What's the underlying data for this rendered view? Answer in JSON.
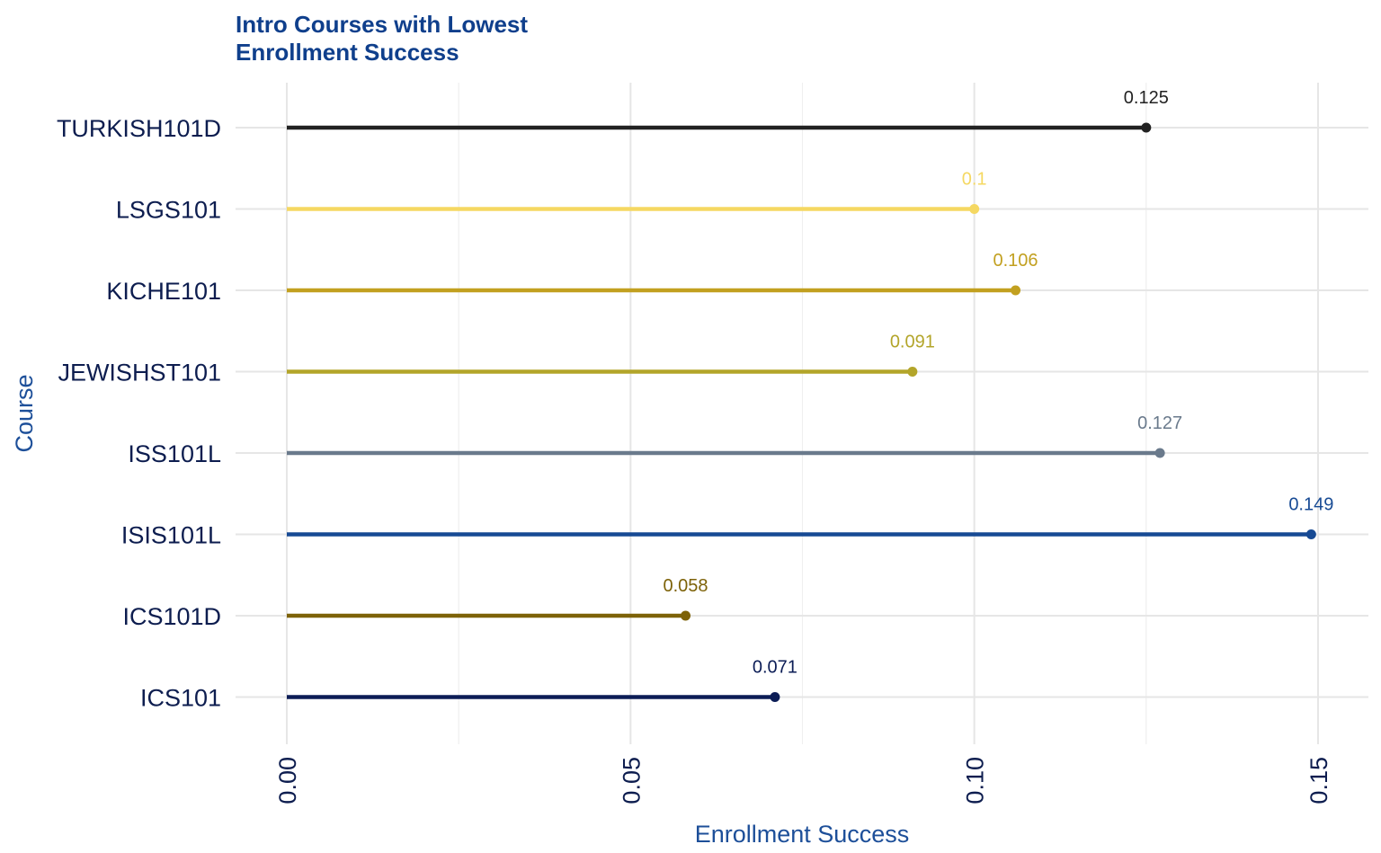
{
  "chart_data": {
    "type": "lollipop",
    "title": "Intro Courses with Lowest Enrollment Success",
    "title_lines": [
      "Intro Courses with Lowest",
      "Enrollment Success"
    ],
    "xlabel": "Enrollment Success",
    "ylabel": "Course",
    "xlim": [
      0,
      0.15
    ],
    "xticks": [
      0.0,
      0.05,
      0.1,
      0.15
    ],
    "xtick_labels": [
      "0.00",
      "0.05",
      "0.10",
      "0.15"
    ],
    "grid": true,
    "legend": "none",
    "categories": [
      "TURKISH101D",
      "LSGS101",
      "KICHE101",
      "JEWISHST101",
      "ISS101L",
      "ISIS101L",
      "ICS101D",
      "ICS101"
    ],
    "values": [
      0.125,
      0.1,
      0.106,
      0.091,
      0.127,
      0.149,
      0.058,
      0.071
    ],
    "labels": [
      "0.125",
      "0.1",
      "0.106",
      "0.091",
      "0.127",
      "0.149",
      "0.058",
      "0.071"
    ],
    "colors": [
      "#222222",
      "#f5d862",
      "#c2a020",
      "#b3a52a",
      "#6a7a8c",
      "#174a94",
      "#7d6208",
      "#0c1d56"
    ]
  }
}
